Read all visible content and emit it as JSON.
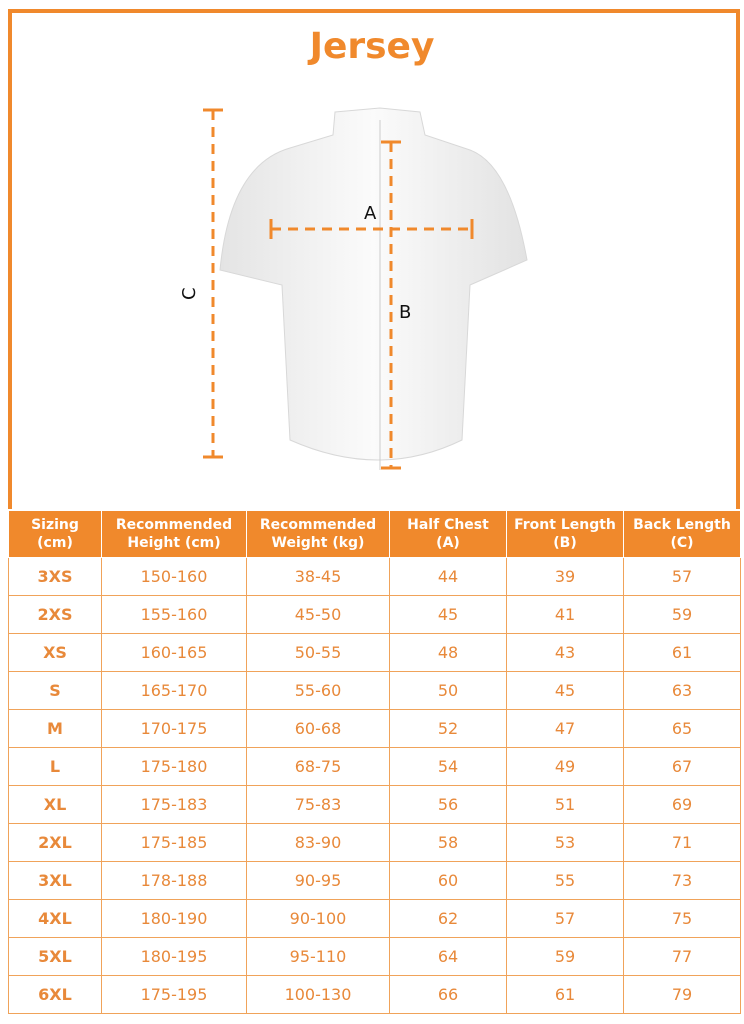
{
  "title": "Jersey",
  "diagram": {
    "labels": {
      "a": "A",
      "b": "B",
      "c": "C"
    },
    "accent": "#f0892c"
  },
  "table": {
    "headers": [
      [
        "Sizing",
        "(cm)"
      ],
      [
        "Recommended",
        "Height (cm)"
      ],
      [
        "Recommended",
        "Weight (kg)"
      ],
      [
        "Half Chest",
        "(A)"
      ],
      [
        "Front Length",
        "(B)"
      ],
      [
        "Back Length",
        "(C)"
      ]
    ],
    "rows": [
      [
        "3XS",
        "150-160",
        "38-45",
        "44",
        "39",
        "57"
      ],
      [
        "2XS",
        "155-160",
        "45-50",
        "45",
        "41",
        "59"
      ],
      [
        "XS",
        "160-165",
        "50-55",
        "48",
        "43",
        "61"
      ],
      [
        "S",
        "165-170",
        "55-60",
        "50",
        "45",
        "63"
      ],
      [
        "M",
        "170-175",
        "60-68",
        "52",
        "47",
        "65"
      ],
      [
        "L",
        "175-180",
        "68-75",
        "54",
        "49",
        "67"
      ],
      [
        "XL",
        "175-183",
        "75-83",
        "56",
        "51",
        "69"
      ],
      [
        "2XL",
        "175-185",
        "83-90",
        "58",
        "53",
        "71"
      ],
      [
        "3XL",
        "178-188",
        "90-95",
        "60",
        "55",
        "73"
      ],
      [
        "4XL",
        "180-190",
        "90-100",
        "62",
        "57",
        "75"
      ],
      [
        "5XL",
        "180-195",
        "95-110",
        "64",
        "59",
        "77"
      ],
      [
        "6XL",
        "175-195",
        "100-130",
        "66",
        "61",
        "79"
      ]
    ]
  }
}
